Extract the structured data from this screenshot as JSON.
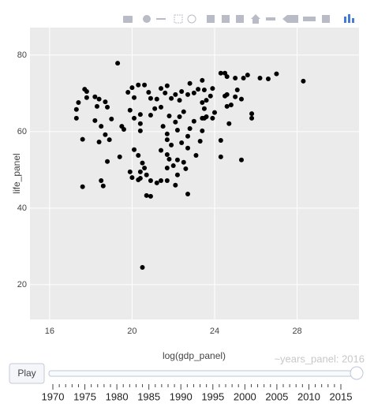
{
  "chart_data": {
    "type": "scatter",
    "x_label": "log(gdp_panel)",
    "y_label": "life_panel",
    "color": "#000000",
    "grid": true,
    "xlim": [
      15.05,
      31
    ],
    "ylim": [
      10.9,
      87.2
    ],
    "xticks": [
      16,
      20,
      24,
      28
    ],
    "yticks": [
      20,
      40,
      60,
      80
    ],
    "x": [
      19.3,
      20.5,
      28.3,
      27.0,
      26.6,
      26.2,
      25.6,
      25.4,
      24.3,
      24.5,
      25.0,
      24.6,
      25.1,
      25.0,
      24.8,
      25.8,
      25.8,
      25.3,
      24.7,
      24.3,
      24.3,
      25.3,
      24.0,
      23.6,
      23.5,
      23.4,
      23.5,
      23.4,
      23.6,
      23.8,
      23.9,
      23.5,
      23.4,
      23.2,
      23.0,
      22.8,
      22.7,
      22.4,
      22.3,
      22.1,
      21.9,
      21.7,
      21.6,
      21.4,
      21.2,
      21.4,
      21.8,
      21.5,
      21.7,
      21.7,
      21.9,
      21.4,
      21.7,
      21.8,
      22.0,
      21.7,
      22.2,
      22.5,
      22.6,
      22.7,
      22.4,
      22.7,
      22.8,
      23.0,
      23.1,
      23.3,
      23.4,
      22.2,
      22.1,
      22.3,
      22.5,
      20.9,
      21.1,
      20.9,
      20.8,
      20.6,
      20.3,
      20.0,
      19.8,
      20.1,
      19.9,
      20.1,
      20.4,
      20.4,
      20.4,
      20.1,
      20.3,
      20.5,
      20.6,
      20.4,
      20.4,
      20.0,
      20.3,
      19.9,
      20.7,
      20.9,
      21.2,
      21.4,
      21.7,
      22.1,
      22.2,
      20.7,
      20.9,
      22.7,
      19.4,
      19.5,
      19.6,
      19.0,
      18.8,
      18.7,
      18.2,
      18.4,
      18.3,
      17.8,
      17.8,
      17.7,
      17.4,
      17.3,
      17.3,
      18.2,
      18.5,
      18.7,
      18.9,
      18.4,
      17.6,
      18.8,
      18.5,
      18.6,
      17.6,
      24.6,
      24.5,
      24.6,
      23.9
    ],
    "values": [
      77.9,
      24.5,
      73.2,
      75.1,
      73.8,
      74.0,
      74.8,
      74.0,
      75.3,
      75.3,
      74.0,
      74.4,
      70.9,
      69.1,
      67.0,
      64.7,
      63.5,
      68.5,
      62.1,
      57.7,
      53.4,
      52.6,
      65.0,
      63.9,
      63.5,
      63.5,
      66.0,
      67.6,
      68.2,
      69.3,
      71.3,
      70.9,
      73.4,
      71.1,
      70.1,
      72.6,
      69.7,
      70.5,
      68.2,
      69.7,
      68.7,
      72.0,
      70.1,
      71.3,
      68.5,
      66.4,
      64.1,
      61.4,
      59.4,
      57.9,
      56.5,
      55.1,
      54.0,
      52.8,
      51.1,
      50.5,
      52.6,
      52.0,
      50.3,
      55.7,
      57.1,
      58.8,
      60.8,
      62.7,
      53.8,
      57.5,
      60.2,
      60.4,
      62.5,
      63.9,
      65.2,
      64.3,
      66.0,
      68.7,
      70.3,
      72.2,
      72.2,
      71.5,
      70.3,
      68.9,
      65.6,
      63.5,
      64.5,
      62.1,
      60.2,
      55.3,
      53.8,
      51.8,
      50.5,
      49.5,
      47.8,
      48.0,
      47.4,
      49.5,
      48.7,
      47.2,
      46.6,
      47.2,
      47.2,
      46.0,
      48.7,
      43.3,
      43.1,
      43.7,
      53.4,
      61.4,
      60.6,
      63.3,
      66.4,
      67.8,
      69.1,
      68.5,
      66.6,
      70.5,
      68.9,
      71.1,
      67.6,
      65.8,
      63.5,
      62.9,
      61.4,
      59.2,
      57.9,
      57.3,
      58.0,
      52.2,
      47.2,
      45.8,
      45.6,
      69.7,
      69.3,
      66.6,
      63.5
    ],
    "slider": {
      "button": "Play",
      "current": "~years_panel: 2016",
      "ticks": [
        "1970",
        "1975",
        "1980",
        "1985",
        "1990",
        "1995",
        "2000",
        "2005",
        "2010",
        "2015"
      ]
    }
  }
}
